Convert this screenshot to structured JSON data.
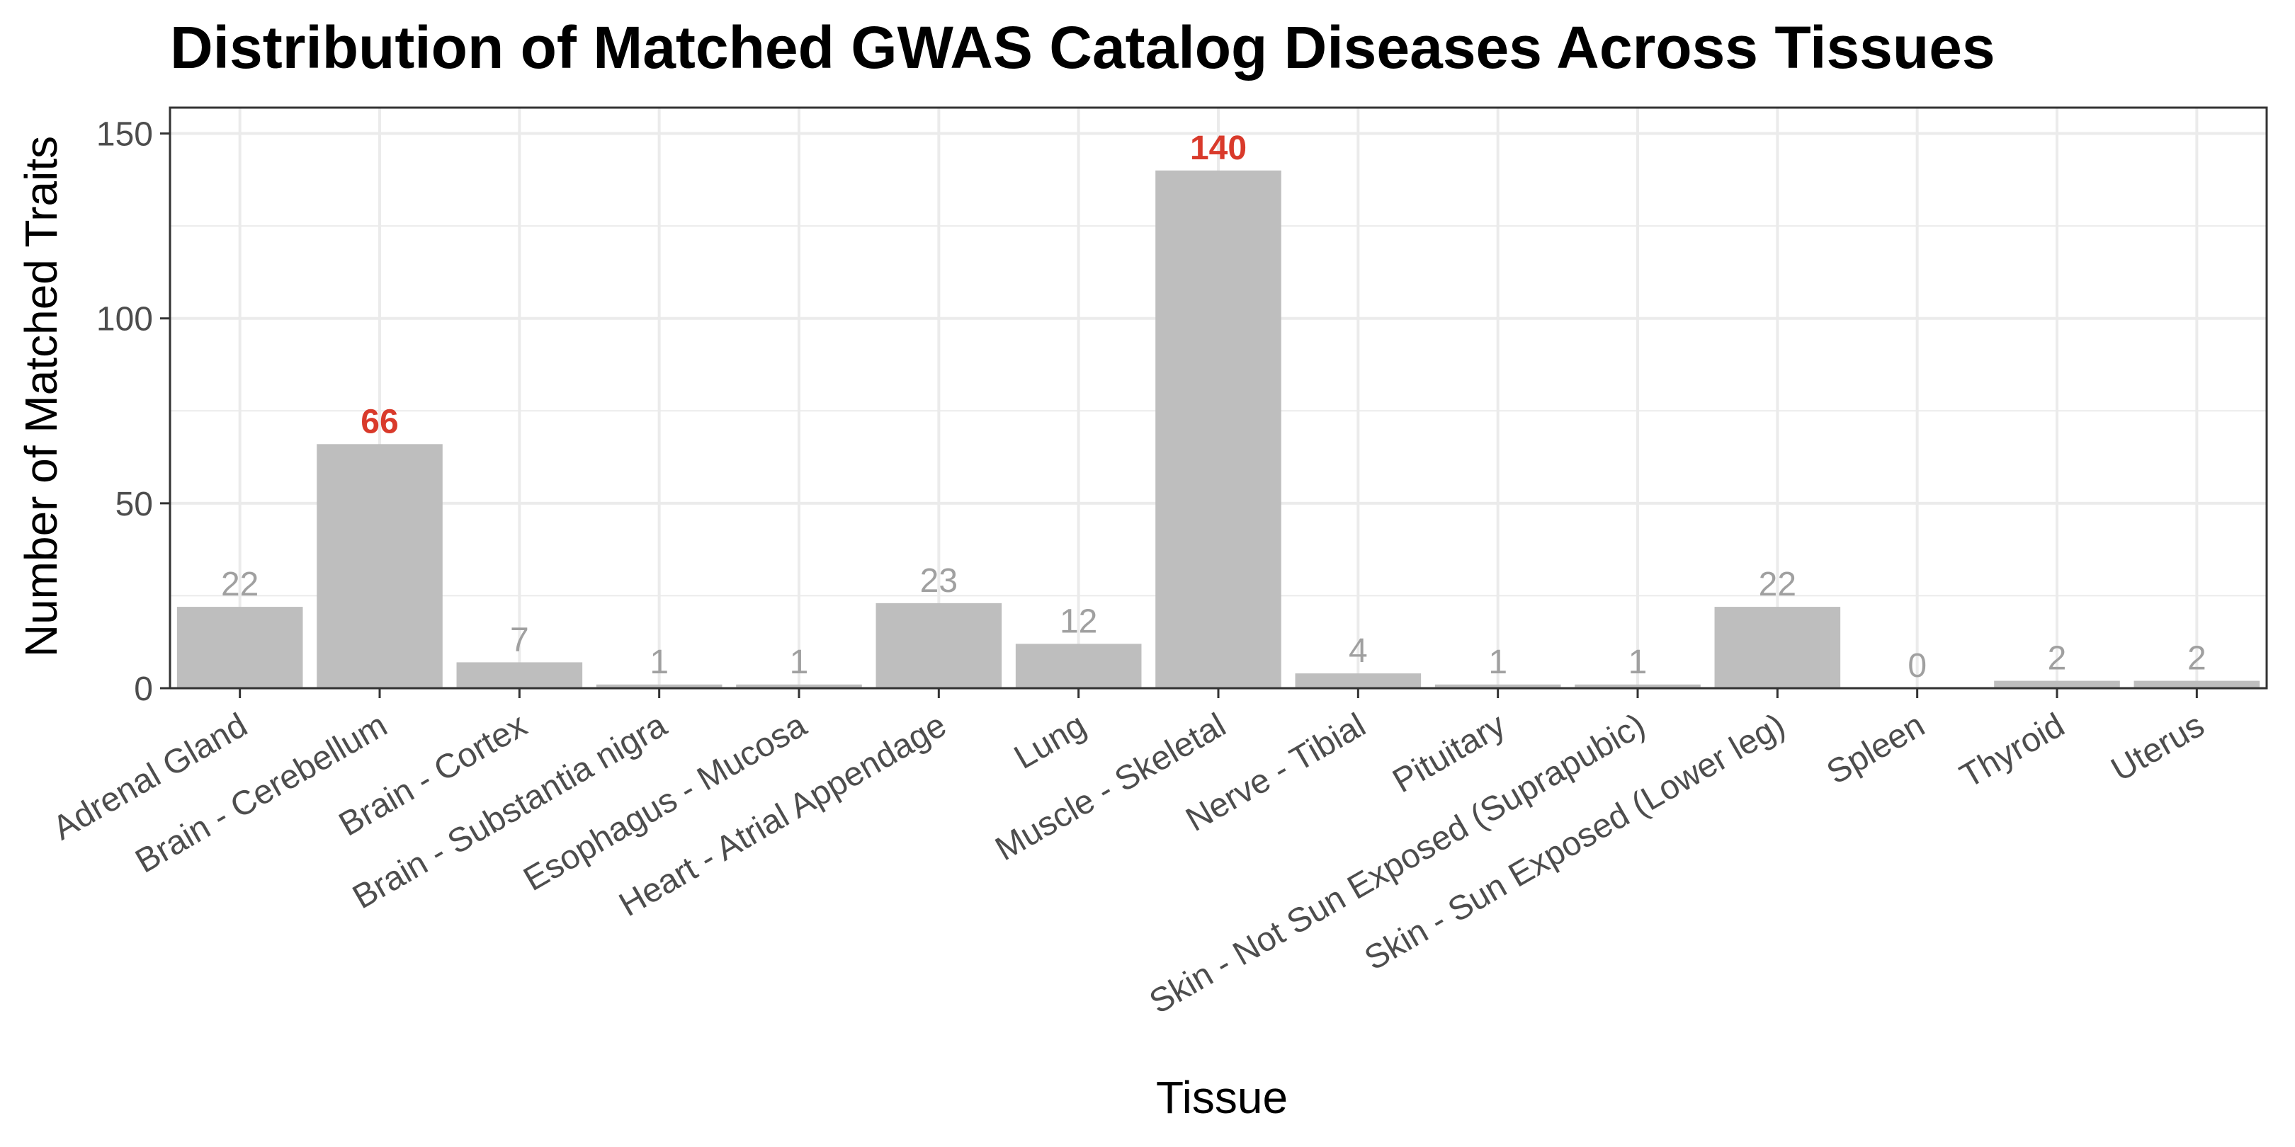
{
  "chart_data": {
    "type": "bar",
    "title": "Distribution of Matched GWAS Catalog Diseases Across Tissues",
    "xlabel": "Tissue",
    "ylabel": "Number of Matched Traits",
    "ylim": [
      0,
      157
    ],
    "yticks": [
      0,
      50,
      100,
      150
    ],
    "grid": true,
    "categories": [
      "Adrenal Gland",
      "Brain - Cerebellum",
      "Brain - Cortex",
      "Brain - Substantia nigra",
      "Esophagus - Mucosa",
      "Heart - Atrial Appendage",
      "Lung",
      "Muscle - Skeletal",
      "Nerve - Tibial",
      "Pituitary",
      "Skin - Not Sun Exposed (Suprapubic)",
      "Skin - Sun Exposed (Lower leg)",
      "Spleen",
      "Thyroid",
      "Uterus"
    ],
    "values": [
      22,
      66,
      7,
      1,
      1,
      23,
      12,
      140,
      4,
      1,
      1,
      22,
      0,
      2,
      2
    ],
    "highlighted": [
      "Brain - Cerebellum",
      "Muscle - Skeletal"
    ],
    "colors": {
      "bar": "#bebebe",
      "label": "#a0a0a0",
      "highlight_label": "#d93a2b",
      "grid": "#ebebeb",
      "panel_border": "#333333"
    }
  }
}
